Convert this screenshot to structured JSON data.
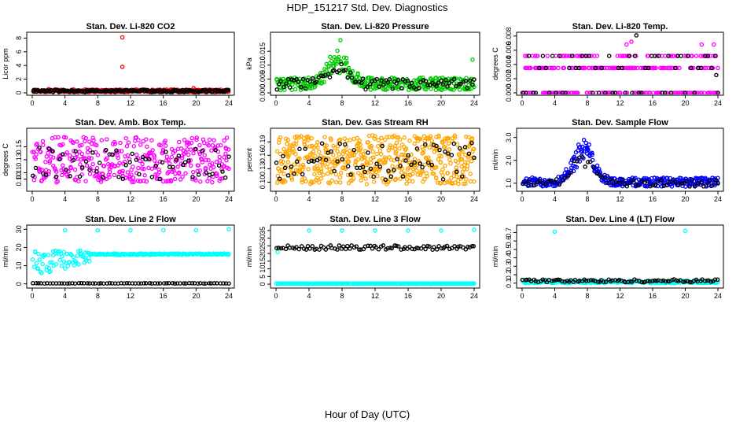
{
  "figure": {
    "title": "HDP_151217  Std. Dev. Diagnostics",
    "xlabel": "Hour of Day (UTC)"
  },
  "chart_data": [
    {
      "id": "co2",
      "type": "scatter",
      "title": "Stan. Dev. Li-820 CO2",
      "ylabel": "Licor ppm",
      "xlim": [
        0,
        24
      ],
      "ylim": [
        0,
        8.5
      ],
      "xticks": [
        0,
        4,
        8,
        12,
        16,
        20,
        24
      ],
      "yticks": [
        0,
        2,
        4,
        6,
        8
      ],
      "ytick_labels": [
        "0",
        "2",
        "4",
        "6",
        "8"
      ],
      "series": [
        {
          "name": "primary",
          "color": "#ff0000",
          "fill": "#ff0000",
          "pattern": "band",
          "n": 280,
          "lo": 0.1,
          "hi": 0.5,
          "bump": 0,
          "outliers": [
            [
              11,
              8.1
            ],
            [
              11,
              3.8
            ],
            [
              19.7,
              0.7
            ],
            [
              2,
              0.55
            ]
          ]
        },
        {
          "name": "black",
          "color": "#000000",
          "fill": "#000000",
          "pattern": "band",
          "n": 170,
          "lo": 0.1,
          "hi": 0.45,
          "bump": 0,
          "outliers": []
        }
      ]
    },
    {
      "id": "pressure",
      "type": "scatter",
      "title": "Stan. Dev. Li-820 Pressure",
      "ylabel": "kPa",
      "xlim": [
        0,
        24
      ],
      "ylim": [
        0,
        0.021
      ],
      "xticks": [
        0,
        4,
        8,
        12,
        16,
        20,
        24
      ],
      "yticks": [
        0,
        0.005,
        0.01,
        0.015
      ],
      "ytick_labels": [
        "0.000",
        "0.005",
        "0.010",
        "0.015"
      ],
      "series": [
        {
          "name": "primary",
          "color": "#00cc00",
          "fill": "#00cc00",
          "pattern": "band",
          "n": 320,
          "lo": 0.001,
          "hi": 0.0055,
          "bump": 0.011,
          "outliers": [
            [
              7.8,
              0.019
            ],
            [
              23.8,
              0.012
            ]
          ]
        },
        {
          "name": "black",
          "color": "#000000",
          "fill": "#000000",
          "pattern": "band",
          "n": 90,
          "lo": 0.001,
          "hi": 0.005,
          "bump": 0.008,
          "outliers": []
        }
      ]
    },
    {
      "id": "temp",
      "type": "scatter",
      "title": "Stan. Dev. Li-820 Temp.",
      "ylabel": "degrees C",
      "xlim": [
        0,
        24
      ],
      "ylim": [
        0,
        0.0082
      ],
      "xticks": [
        0,
        4,
        8,
        12,
        16,
        20,
        24
      ],
      "yticks": [
        0,
        0.002,
        0.004,
        0.006,
        0.008
      ],
      "ytick_labels": [
        "0.000",
        "0.002",
        "0.004",
        "0.006",
        "0.008"
      ],
      "series": [
        {
          "name": "primary",
          "color": "#ff00ff",
          "fill": "#ff00ff",
          "pattern": "levels",
          "n": 300,
          "levels": [
            0,
            0.0035,
            0.0052
          ],
          "outliers": [
            [
              12.8,
              0.0068
            ],
            [
              13.4,
              0.0072
            ],
            [
              23.5,
              0.0068
            ],
            [
              22.0,
              0.0068
            ]
          ]
        },
        {
          "name": "black",
          "color": "#000000",
          "fill": "#000000",
          "pattern": "levels",
          "n": 60,
          "levels": [
            0,
            0.0035,
            0.0052
          ],
          "outliers": [
            [
              14,
              0.0081
            ],
            [
              23.8,
              0.0025
            ]
          ]
        }
      ]
    },
    {
      "id": "ambtemp",
      "type": "scatter",
      "title": "Stan. Dev. Amb. Box Temp.",
      "ylabel": "degrees C",
      "xlim": [
        0,
        24
      ],
      "ylim": [
        0.085,
        0.175
      ],
      "xticks": [
        0,
        4,
        8,
        12,
        16,
        20,
        24
      ],
      "yticks": [
        0.1,
        0.11,
        0.13,
        0.15
      ],
      "ytick_labels": [
        "0.10",
        "0.11",
        "0.13",
        "0.15"
      ],
      "series": [
        {
          "name": "primary",
          "color": "#ff00ff",
          "fill": "#ff00ff",
          "pattern": "band",
          "n": 380,
          "lo": 0.095,
          "hi": 0.165,
          "bump": 0,
          "outliers": []
        },
        {
          "name": "black",
          "color": "#000000",
          "fill": "#000000",
          "pattern": "band",
          "n": 60,
          "lo": 0.1,
          "hi": 0.15,
          "bump": 0,
          "outliers": []
        }
      ]
    },
    {
      "id": "rh",
      "type": "scatter",
      "title": "Stan. Dev. Gas Stream RH",
      "ylabel": "percent",
      "xlim": [
        0,
        24
      ],
      "ylim": [
        0.085,
        0.215
      ],
      "xticks": [
        0,
        4,
        8,
        12,
        16,
        20,
        24
      ],
      "yticks": [
        0.1,
        0.13,
        0.16,
        0.19
      ],
      "ytick_labels": [
        "0.10",
        "0.13",
        "0.16",
        "0.19"
      ],
      "series": [
        {
          "name": "primary",
          "color": "#ffa500",
          "fill": "#ffa500",
          "pattern": "band",
          "n": 520,
          "lo": 0.095,
          "hi": 0.205,
          "bump": 0,
          "outliers": []
        },
        {
          "name": "black",
          "color": "#000000",
          "fill": "#000000",
          "pattern": "band",
          "n": 70,
          "lo": 0.105,
          "hi": 0.19,
          "bump": 0,
          "outliers": []
        }
      ]
    },
    {
      "id": "sampleflow",
      "type": "scatter",
      "title": "Stan. Dev. Sample Flow",
      "ylabel": "ml/min",
      "xlim": [
        0,
        24
      ],
      "ylim": [
        0.75,
        3.3
      ],
      "xticks": [
        0,
        4,
        8,
        12,
        16,
        20,
        24
      ],
      "yticks": [
        1.0,
        2.0,
        3.0
      ],
      "ytick_labels": [
        "1.0",
        "2.0",
        "3.0"
      ],
      "series": [
        {
          "name": "primary",
          "color": "#0000ff",
          "fill": "#0000ff",
          "pattern": "band",
          "n": 330,
          "lo": 0.85,
          "hi": 1.25,
          "bump": 1.8,
          "outliers": []
        },
        {
          "name": "black",
          "color": "#000000",
          "fill": "#000000",
          "pattern": "band",
          "n": 70,
          "lo": 0.85,
          "hi": 1.15,
          "bump": 1.3,
          "outliers": []
        }
      ]
    },
    {
      "id": "line2",
      "type": "scatter",
      "title": "Stan. Dev. Line 2 Flow",
      "ylabel": "ml/min",
      "xlim": [
        0,
        24
      ],
      "ylim": [
        -1,
        31
      ],
      "xticks": [
        0,
        4,
        8,
        12,
        16,
        20,
        24
      ],
      "yticks": [
        0,
        10,
        20,
        30
      ],
      "ytick_labels": [
        "0",
        "10",
        "20",
        "30"
      ],
      "series": [
        {
          "name": "primary",
          "color": "#00ffff",
          "fill": "#00ffff",
          "pattern": "flowramp",
          "n": 240,
          "base": 16.3,
          "outliers": [
            [
              4,
              29.5
            ],
            [
              8,
              29.5
            ],
            [
              12,
              29.5
            ],
            [
              16,
              29.5
            ],
            [
              20,
              29.5
            ],
            [
              24,
              30
            ]
          ]
        },
        {
          "name": "black",
          "color": "#000000",
          "fill": "#000000",
          "pattern": "const",
          "n": 70,
          "value": 0.3,
          "outliers": []
        }
      ]
    },
    {
      "id": "line3",
      "type": "scatter",
      "title": "Stan. Dev. Line 3 Flow",
      "ylabel": "ml/min",
      "xlim": [
        0,
        24
      ],
      "ylim": [
        -1,
        37
      ],
      "xticks": [
        0,
        4,
        8,
        12,
        16,
        20,
        24
      ],
      "yticks": [
        0,
        5,
        10,
        15,
        20,
        25,
        30,
        35
      ],
      "ytick_labels": [
        "0",
        "5",
        "10",
        "15",
        "20",
        "25",
        "30",
        "35"
      ],
      "series": [
        {
          "name": "primary",
          "color": "#00ffff",
          "fill": "#00ffff",
          "pattern": "const",
          "n": 240,
          "value": 0.4,
          "outliers": [
            [
              4,
              35
            ],
            [
              8,
              35
            ],
            [
              12,
              35
            ],
            [
              16,
              35
            ],
            [
              20,
              35
            ],
            [
              24,
              35.5
            ],
            [
              0.2,
              21
            ]
          ]
        },
        {
          "name": "black",
          "color": "#000000",
          "fill": "#000000",
          "pattern": "band",
          "n": 90,
          "lo": 22.5,
          "hi": 25.3,
          "bump": 0,
          "outliers": []
        }
      ]
    },
    {
      "id": "line4",
      "type": "scatter",
      "title": "Stan. Dev. Line 4 (LT) Flow",
      "ylabel": "ml/min",
      "xlim": [
        0,
        24
      ],
      "ylim": [
        0.07,
        0.76
      ],
      "xticks": [
        0,
        4,
        8,
        12,
        16,
        20,
        24
      ],
      "yticks": [
        0.1,
        0.2,
        0.3,
        0.4,
        0.5,
        0.6,
        0.7
      ],
      "ytick_labels": [
        "0.1",
        "0.2",
        "0.3",
        "0.4",
        "0.5",
        "0.6",
        "0.7"
      ],
      "series": [
        {
          "name": "primary",
          "color": "#00ffff",
          "fill": "#00ffff",
          "pattern": "band",
          "n": 220,
          "lo": 0.1,
          "hi": 0.13,
          "bump": 0,
          "outliers": [
            [
              4,
              0.71
            ],
            [
              20,
              0.72
            ]
          ]
        },
        {
          "name": "black",
          "color": "#000000",
          "fill": "#000000",
          "pattern": "band",
          "n": 90,
          "lo": 0.11,
          "hi": 0.145,
          "bump": 0,
          "outliers": []
        }
      ]
    }
  ]
}
